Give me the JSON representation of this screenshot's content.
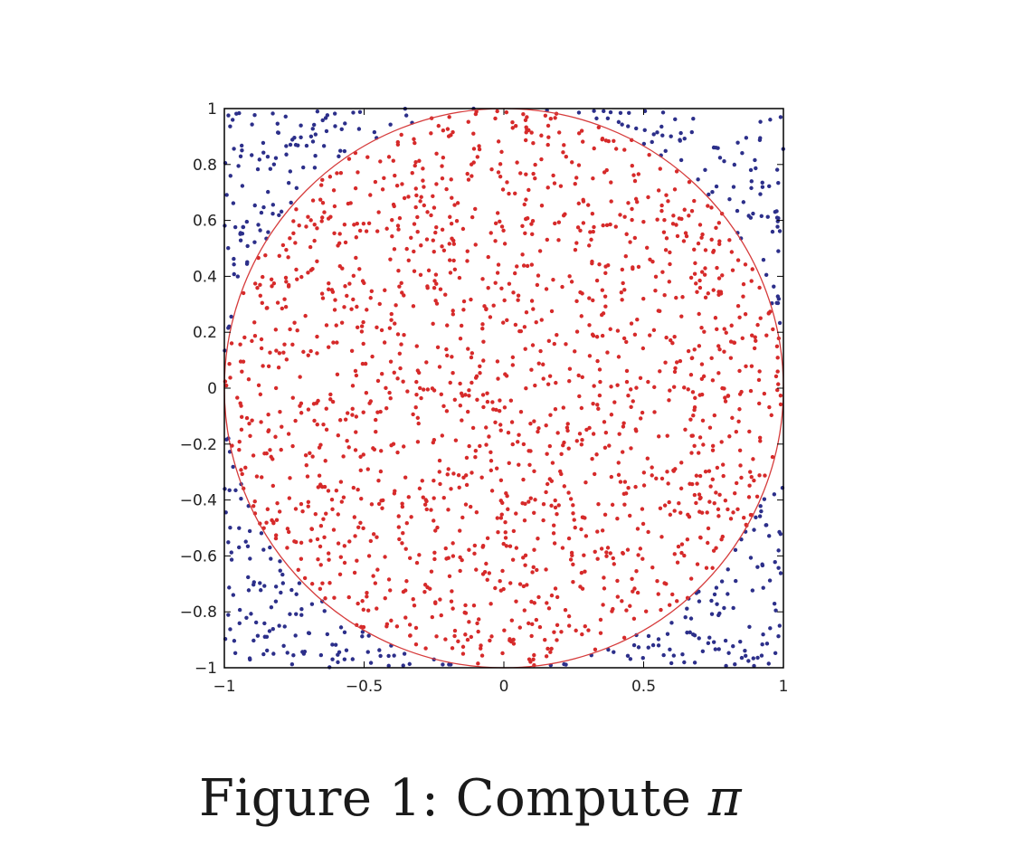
{
  "chart_data": {
    "type": "scatter",
    "title": "",
    "xlabel": "",
    "ylabel": "",
    "xlim": [
      -1,
      1
    ],
    "ylim": [
      -1,
      1
    ],
    "grid": false,
    "x_ticks": [
      -1,
      -0.5,
      0,
      0.5,
      1
    ],
    "x_tick_labels": [
      "−1",
      "−0.5",
      "0",
      "0.5",
      "1"
    ],
    "y_ticks": [
      1,
      0.8,
      0.6,
      0.4,
      0.2,
      0,
      -0.2,
      -0.4,
      -0.6,
      -0.8,
      -1
    ],
    "y_tick_labels": [
      "1",
      "0.8",
      "0.6",
      "0.4",
      "0.2",
      "0",
      "−0.2",
      "−0.4",
      "−0.6",
      "−0.8",
      "−1"
    ],
    "circle": {
      "center": [
        0,
        0
      ],
      "radius": 1,
      "color": "#d63c3c"
    },
    "series": [
      {
        "inside_circle": true,
        "color": "#d62a2a",
        "count": 1570
      },
      {
        "inside_circle": false,
        "color": "#2c2f8a",
        "count": 430
      }
    ]
  },
  "caption": {
    "prefix": "Figure 1:  Compute ",
    "symbol": "π"
  },
  "colors": {
    "axes": "#000000",
    "inside_points": "#d62a2a",
    "outside_points": "#2c2f8a",
    "circle": "#d63c3c"
  }
}
